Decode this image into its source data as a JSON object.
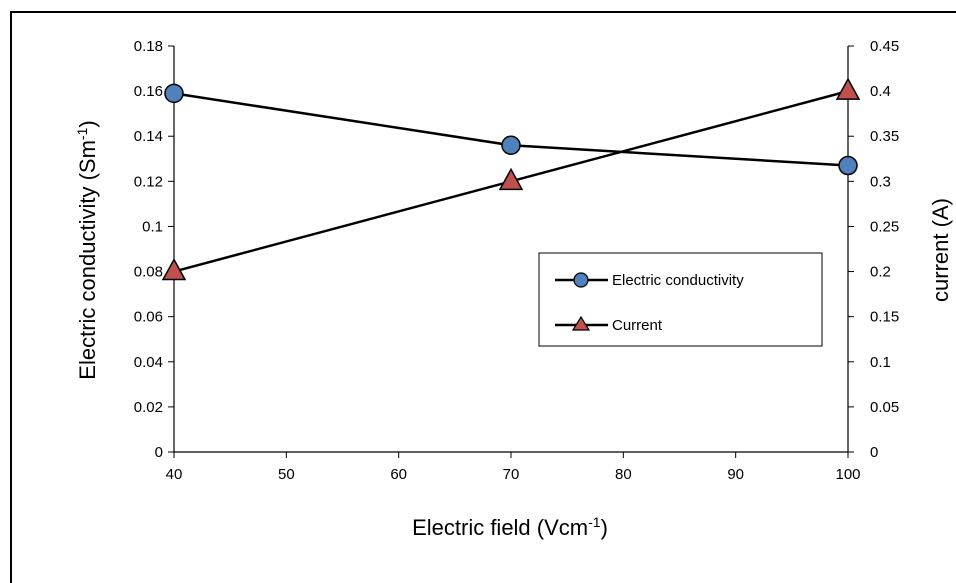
{
  "chart_data": {
    "type": "line",
    "x": [
      40,
      70,
      100
    ],
    "xlim": [
      40,
      100
    ],
    "xticks": [
      40,
      50,
      60,
      70,
      80,
      90,
      100
    ],
    "xlabel": "Electric field (Vcm",
    "xlabel_sup": "-1",
    "xlabel_end": ")",
    "ylabel_left": "Electric conductivity (Sm",
    "ylabel_left_sup": "-1",
    "ylabel_left_end": ")",
    "ylabel_right": "current (A)",
    "ylim_left": [
      0,
      0.18
    ],
    "ylim_right": [
      0,
      0.45
    ],
    "yticks_left": [
      "0",
      "0.02",
      "0.04",
      "0.06",
      "0.08",
      "0.1",
      "0.12",
      "0.14",
      "0.16",
      "0.18"
    ],
    "yticks_right": [
      "0",
      "0.05",
      "0.1",
      "0.15",
      "0.2",
      "0.25",
      "0.3",
      "0.35",
      "0.4",
      "0.45"
    ],
    "grid": false,
    "legend_position": "center-right",
    "series": [
      {
        "name": "Electric conductivity",
        "axis": "left",
        "marker": "circle",
        "color": "#4F81BD",
        "values": [
          0.159,
          0.136,
          0.127
        ]
      },
      {
        "name": "Current",
        "axis": "right",
        "marker": "triangle",
        "color": "#C0504D",
        "values": [
          0.2,
          0.3,
          0.4
        ]
      }
    ]
  }
}
